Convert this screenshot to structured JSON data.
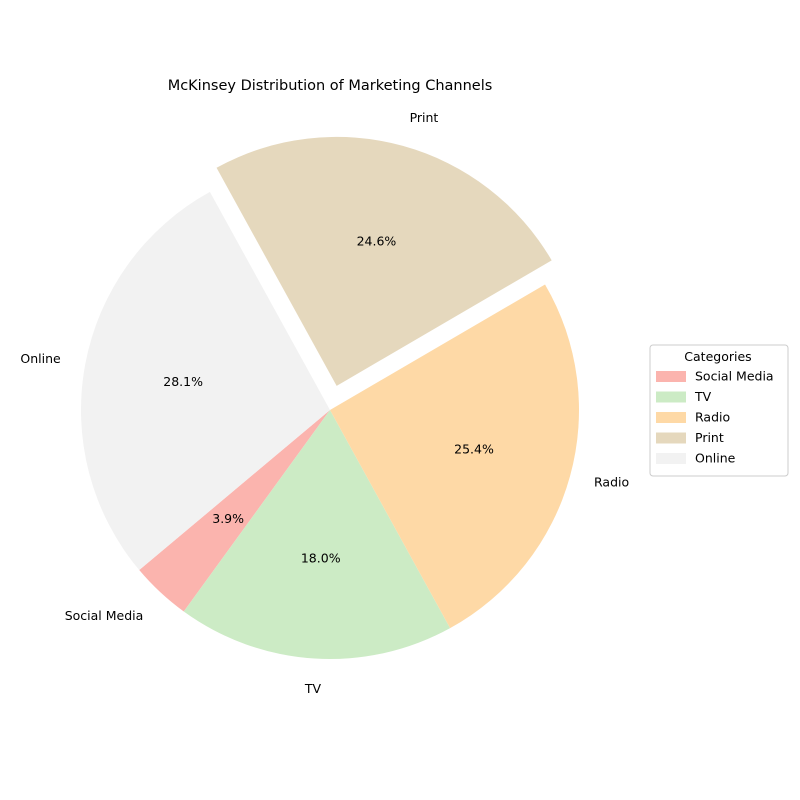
{
  "chart_data": {
    "type": "pie",
    "title": "McKinsey Distribution of Marketing Channels",
    "slices": [
      {
        "label": "Social Media",
        "value": 3.9,
        "percent_label": "3.9%",
        "color": "#fbb4ae",
        "exploded": false
      },
      {
        "label": "TV",
        "value": 18.0,
        "percent_label": "18.0%",
        "color": "#ccebc5",
        "exploded": false
      },
      {
        "label": "Radio",
        "value": 25.4,
        "percent_label": "25.4%",
        "color": "#fed9a6",
        "exploded": false
      },
      {
        "label": "Print",
        "value": 24.6,
        "percent_label": "24.6%",
        "color": "#e5d8bd",
        "exploded": true
      },
      {
        "label": "Online",
        "value": 28.1,
        "percent_label": "28.1%",
        "color": "#f2f2f2",
        "exploded": false
      }
    ],
    "start_angle_deg": 220,
    "direction": "counterclockwise",
    "legend": {
      "title": "Categories",
      "placement": "right"
    }
  }
}
